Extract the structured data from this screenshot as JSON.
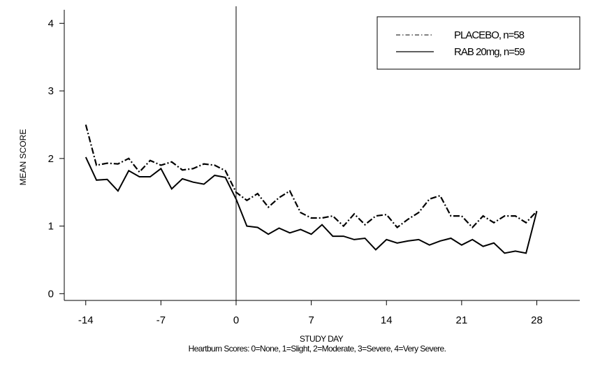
{
  "chart_data": {
    "type": "line",
    "xlabel": "STUDY DAY",
    "ylabel": "MEAN SCORE",
    "xlim": [
      -16,
      32
    ],
    "ylim": [
      -0.1,
      4.2
    ],
    "xticks": [
      -14,
      -7,
      0,
      7,
      14,
      21,
      28
    ],
    "yticks": [
      0,
      1,
      2,
      3,
      4
    ],
    "xtick_labels": [
      "-14",
      "-7",
      "0",
      "7",
      "14",
      "21",
      "28"
    ],
    "ytick_labels": [
      "0",
      "1",
      "2",
      "3",
      "4"
    ],
    "reference_line_x": 0,
    "grid": false,
    "legend_position": "top-right",
    "footnote": "Heartburn Scores: 0=None, 1=Slight, 2=Moderate, 3=Severe, 4=Very Severe.",
    "x": [
      -14,
      -13,
      -12,
      -11,
      -10,
      -9,
      -8,
      -7,
      -6,
      -5,
      -4,
      -3,
      -2,
      -1,
      0,
      1,
      2,
      3,
      4,
      5,
      6,
      7,
      8,
      9,
      10,
      11,
      12,
      13,
      14,
      15,
      16,
      17,
      18,
      19,
      20,
      21,
      22,
      23,
      24,
      25,
      26,
      27,
      28
    ],
    "series": [
      {
        "name": "PLACEBO, n=58",
        "style": "dash-dot",
        "values": [
          2.5,
          1.9,
          1.93,
          1.92,
          2.0,
          1.8,
          1.97,
          1.9,
          1.95,
          1.83,
          1.85,
          1.92,
          1.9,
          1.82,
          1.5,
          1.38,
          1.48,
          1.28,
          1.42,
          1.52,
          1.2,
          1.12,
          1.12,
          1.15,
          1.0,
          1.18,
          1.02,
          1.15,
          1.17,
          0.98,
          1.1,
          1.2,
          1.4,
          1.45,
          1.15,
          1.15,
          0.98,
          1.15,
          1.05,
          1.15,
          1.15,
          1.05,
          1.22
        ]
      },
      {
        "name": "RAB 20mg, n=59",
        "style": "solid",
        "values": [
          2.02,
          1.68,
          1.69,
          1.52,
          1.82,
          1.73,
          1.73,
          1.85,
          1.55,
          1.7,
          1.65,
          1.62,
          1.75,
          1.72,
          1.4,
          1.0,
          0.98,
          0.88,
          0.97,
          0.9,
          0.95,
          0.88,
          1.02,
          0.85,
          0.85,
          0.8,
          0.82,
          0.65,
          0.8,
          0.75,
          0.78,
          0.8,
          0.72,
          0.78,
          0.82,
          0.72,
          0.8,
          0.7,
          0.75,
          0.6,
          0.63,
          0.6,
          1.22
        ]
      }
    ]
  }
}
